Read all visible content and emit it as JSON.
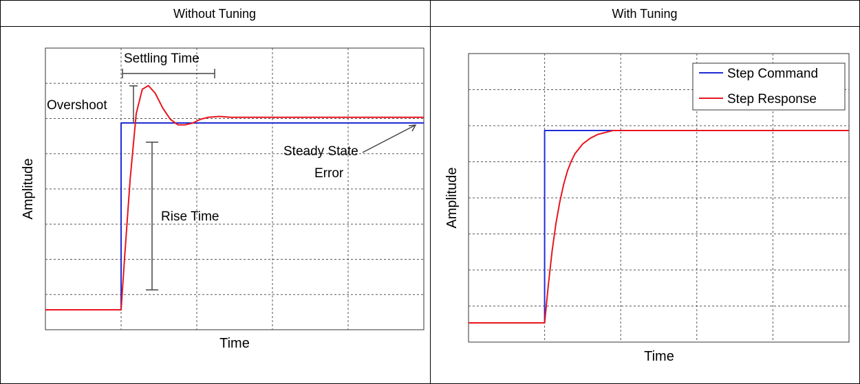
{
  "table": {
    "headers": [
      "Without Tuning",
      "With Tuning"
    ]
  },
  "colors": {
    "command": "#1f2bd6",
    "response": "#e8141c",
    "grid": "#555555",
    "annotation": "#444444"
  },
  "chart_data": [
    {
      "type": "line",
      "title": "",
      "xlabel": "Time",
      "ylabel": "Amplitude",
      "xlim": [
        0,
        5
      ],
      "ylim": [
        0,
        1.25
      ],
      "grid": true,
      "grid_divisions": {
        "x": 5,
        "y": 8
      },
      "series": [
        {
          "key": "command",
          "x": [
            0,
            1,
            1,
            5
          ],
          "y": [
            0,
            0,
            1,
            1
          ]
        },
        {
          "key": "response",
          "x": [
            0,
            1,
            1.05,
            1.12,
            1.2,
            1.28,
            1.36,
            1.45,
            1.55,
            1.65,
            1.75,
            1.85,
            1.95,
            2.05,
            2.15,
            2.3,
            2.45,
            2.7,
            3,
            4,
            5
          ],
          "y": [
            0,
            0,
            0.3,
            0.7,
            1.05,
            1.18,
            1.2,
            1.16,
            1.08,
            1.02,
            0.99,
            0.99,
            1.0,
            1.02,
            1.03,
            1.035,
            1.03,
            1.03,
            1.03,
            1.03,
            1.03
          ]
        }
      ],
      "annotations": [
        "Settling Time",
        "Overshoot",
        "Steady State",
        "Error",
        "Rise Time"
      ]
    },
    {
      "type": "line",
      "title": "",
      "xlabel": "Time",
      "ylabel": "Amplitude",
      "xlim": [
        0,
        5
      ],
      "ylim": [
        0,
        1.5
      ],
      "grid": true,
      "grid_divisions": {
        "x": 5,
        "y": 8
      },
      "legend": {
        "placement": "top-right",
        "entries": [
          "Step Command",
          "Step Response"
        ]
      },
      "series": [
        {
          "name": "Step Command",
          "key": "command",
          "x": [
            0,
            1,
            1,
            5
          ],
          "y": [
            0,
            0,
            1,
            1
          ]
        },
        {
          "name": "Step Response",
          "key": "response",
          "x": [
            0,
            1,
            1.05,
            1.1,
            1.15,
            1.2,
            1.25,
            1.3,
            1.35,
            1.4,
            1.5,
            1.6,
            1.7,
            1.8,
            1.9,
            2,
            5
          ],
          "y": [
            0,
            0,
            0.2,
            0.38,
            0.52,
            0.63,
            0.72,
            0.79,
            0.84,
            0.88,
            0.93,
            0.96,
            0.98,
            0.99,
            1.0,
            1.0,
            1.0
          ]
        }
      ]
    }
  ]
}
